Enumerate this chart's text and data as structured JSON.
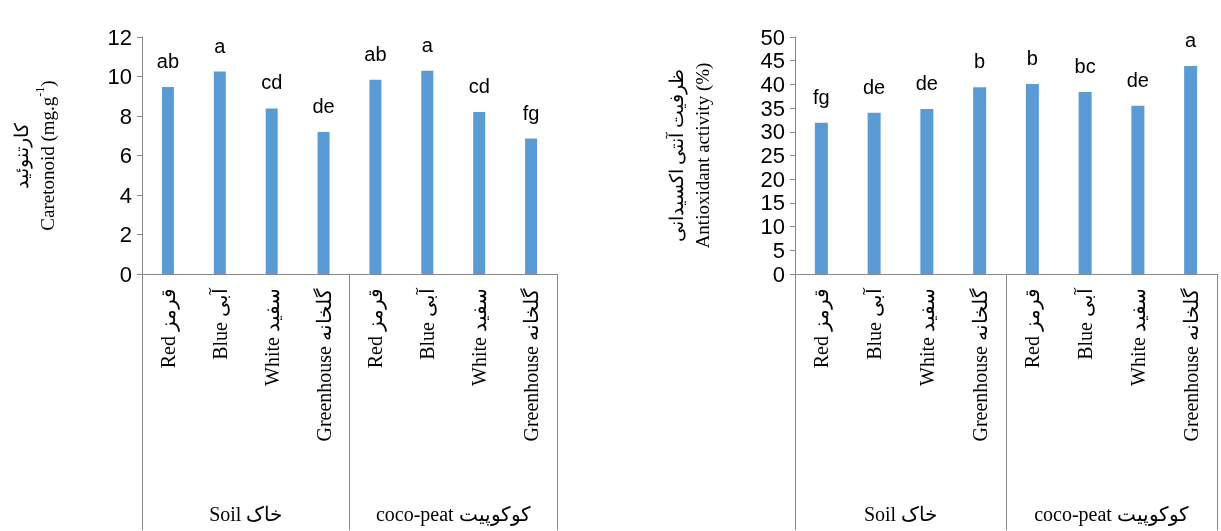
{
  "chart_data": [
    {
      "type": "bar",
      "ylabel": "کارتنوئید\nCaretonoid (mg.g$^{-1}$)",
      "categories": [
        "Red قرمز",
        "Blue آبی",
        "White سفید",
        "Greenhouse گلخانه",
        "Red قرمز",
        "Blue آبی",
        "White سفید",
        "Greenhouse گلخانه"
      ],
      "values": [
        9.47,
        10.25,
        8.38,
        7.19,
        9.84,
        10.29,
        8.2,
        6.86
      ],
      "color": "#5b9bd5",
      "value_labels": [
        "ab",
        "a",
        "cd",
        "de",
        "ab",
        "a",
        "cd",
        "fg"
      ],
      "annotations": [
        "Soil خاک",
        "coco-peat کوکوپیت"
      ],
      "ylim": [
        0,
        12
      ],
      "yticks": [
        0,
        2,
        4,
        6,
        8,
        10,
        12
      ]
    },
    {
      "type": "bar",
      "ylabel": "ظرفیت آنتی اکسیدانی\nAntioxidant activity (%)",
      "categories": [
        "Red قرمز",
        "Blue آبی",
        "White سفید",
        "Greenhouse گلخانه",
        "Red قرمز",
        "Blue آبی",
        "White سفید",
        "Greenhouse گلخانه"
      ],
      "values": [
        31.9,
        34.0,
        34.8,
        39.4,
        40.1,
        38.4,
        35.5,
        43.9
      ],
      "color": "#5b9bd5",
      "value_labels": [
        "fg",
        "de",
        "de",
        "b",
        "b",
        "bc",
        "de",
        "a"
      ],
      "annotations": [
        "Soil خاک",
        "coco-peat کوکوپیت"
      ],
      "ylim": [
        0,
        50
      ],
      "yticks": [
        0,
        5,
        10,
        15,
        20,
        25,
        30,
        35,
        40,
        45,
        50
      ]
    }
  ]
}
